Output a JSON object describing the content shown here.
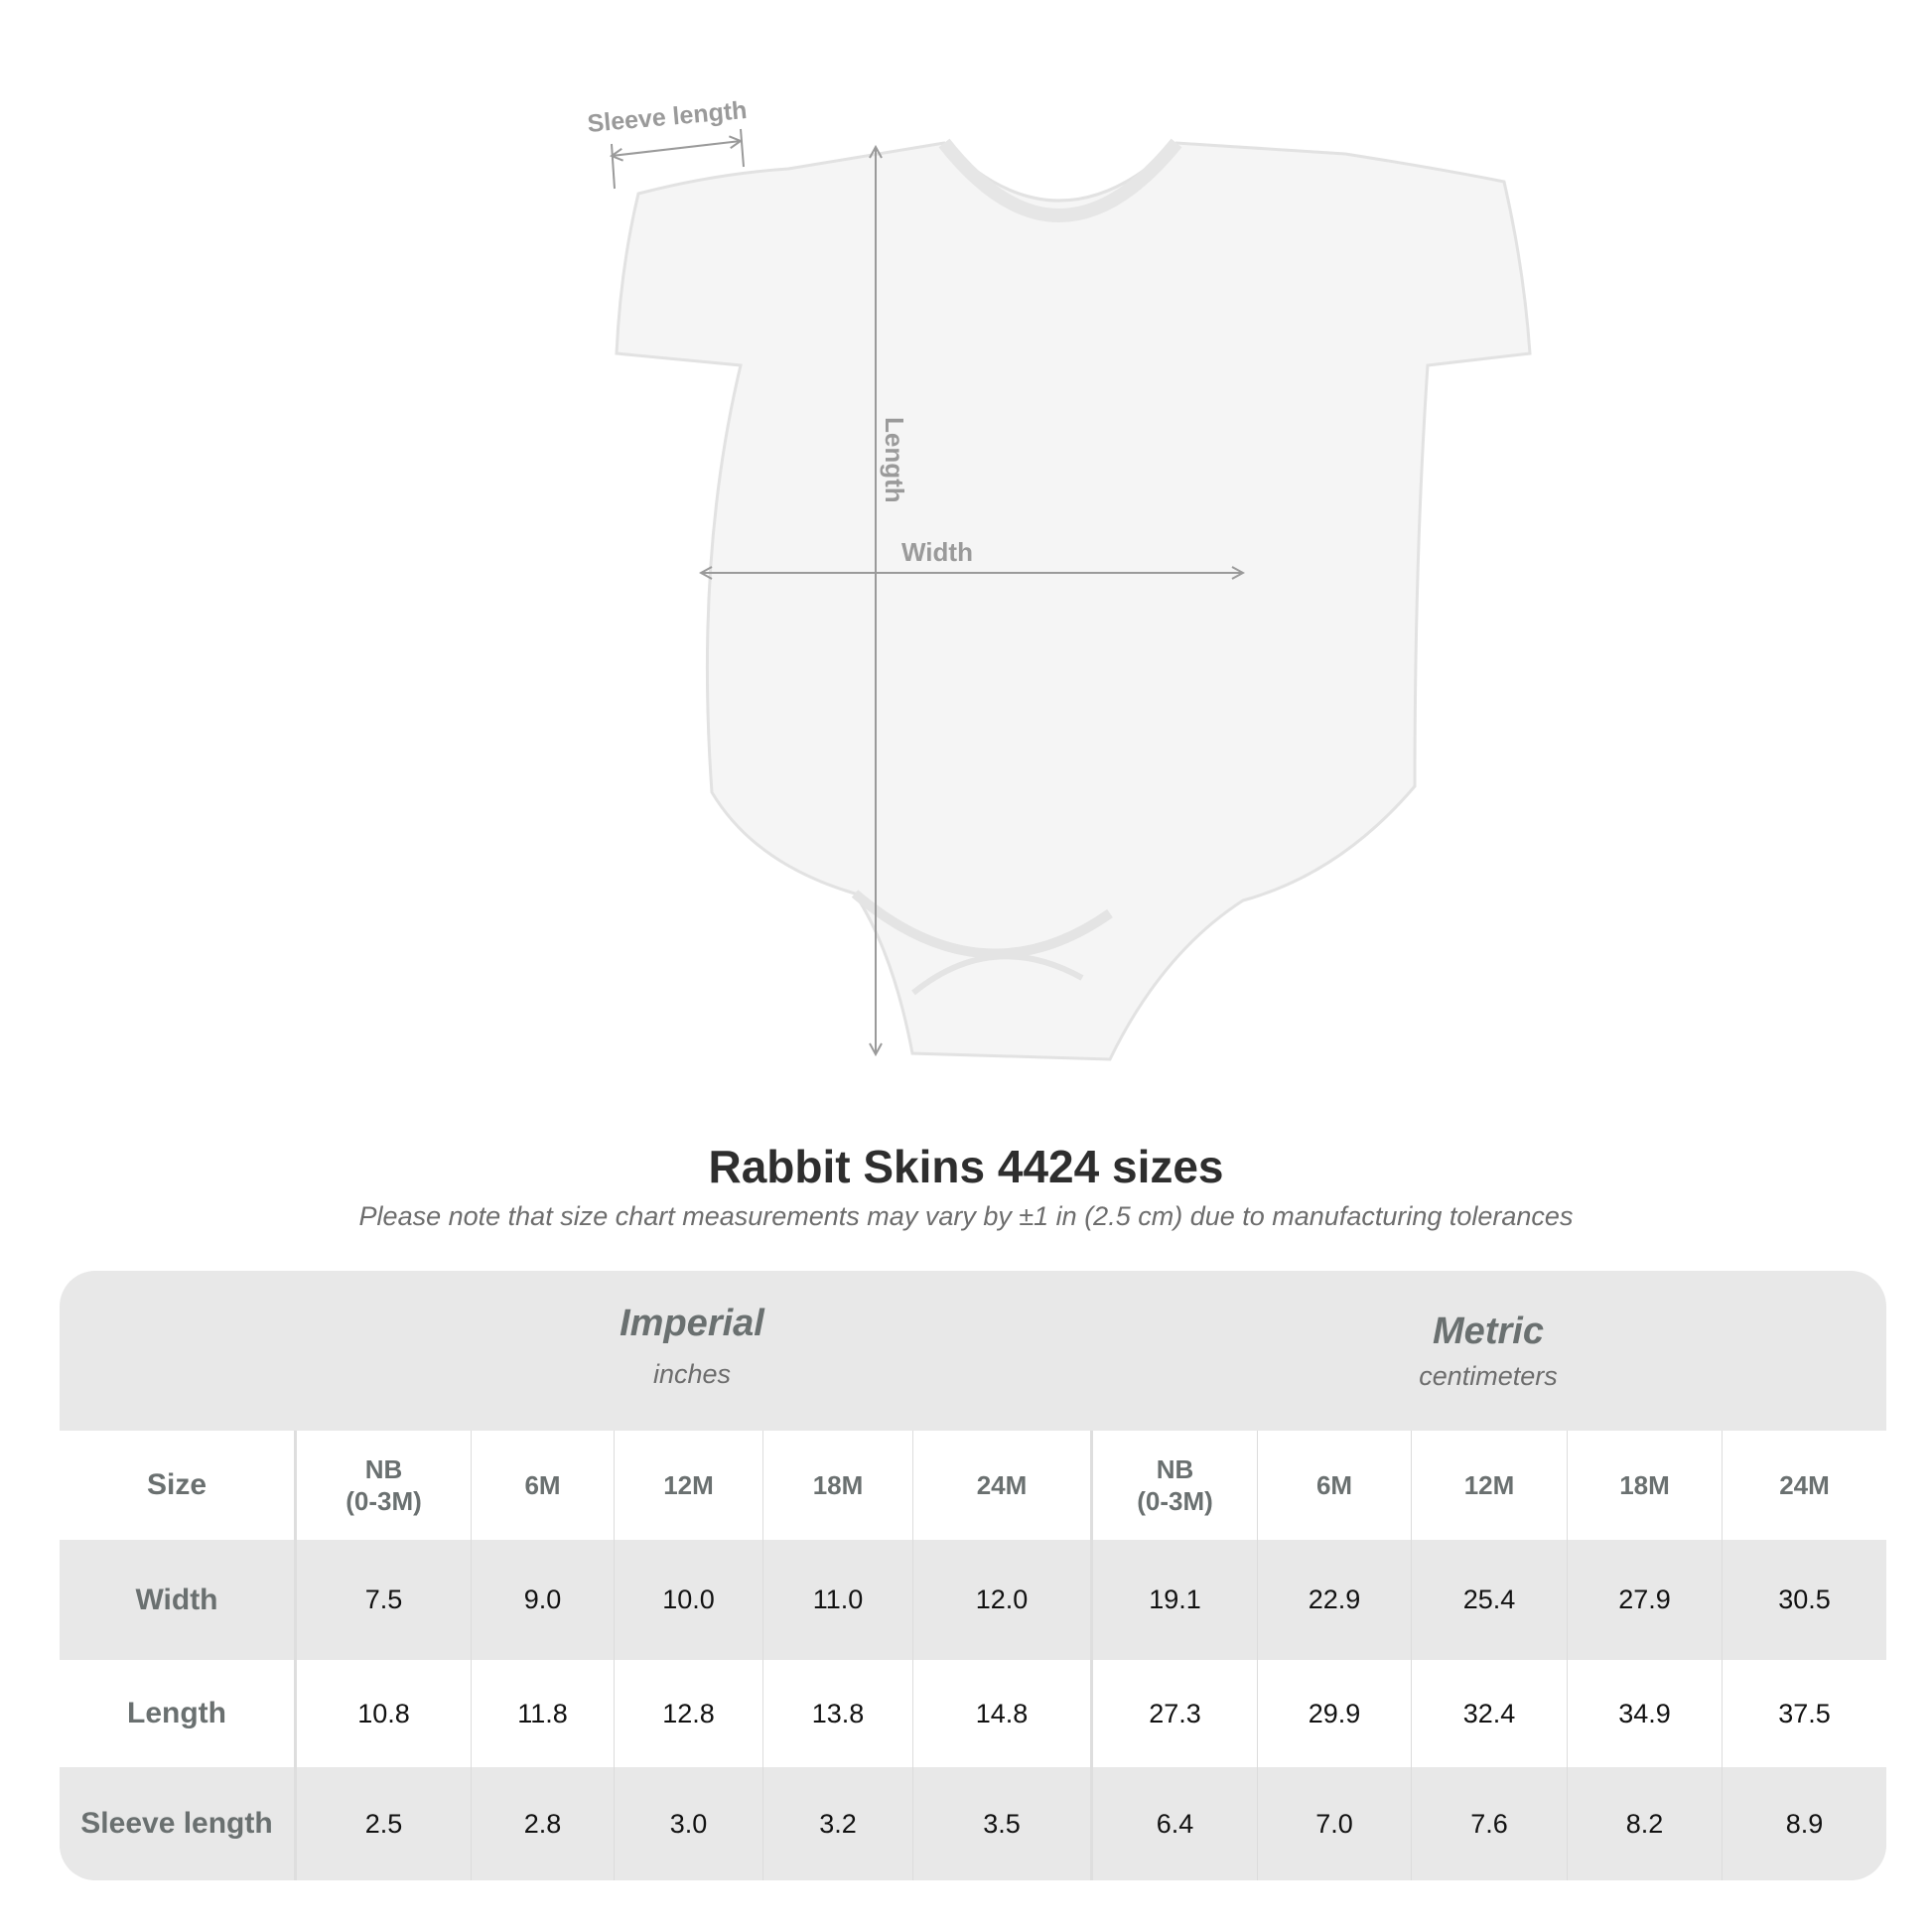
{
  "diagram": {
    "labels": {
      "sleeve": "Sleeve length",
      "length": "Length",
      "width": "Width"
    },
    "garment_color": "#f7f7f7",
    "line_color": "#9a9a9a"
  },
  "title": "Rabbit Skins 4424 sizes",
  "subtitle": "Please note that size chart measurements may vary by ±1 in (2.5 cm) due to manufacturing tolerances",
  "table": {
    "imperial": {
      "name": "Imperial",
      "unit": "inches"
    },
    "metric": {
      "name": "Metric",
      "unit": "centimeters"
    },
    "size_label": "Size",
    "sizes": [
      "NB\n(0-3M)",
      "6M",
      "12M",
      "18M",
      "24M"
    ],
    "rows": [
      {
        "label": "Width",
        "imperial": [
          "7.5",
          "9.0",
          "10.0",
          "11.0",
          "12.0"
        ],
        "metric": [
          "19.1",
          "22.9",
          "25.4",
          "27.9",
          "30.5"
        ]
      },
      {
        "label": "Length",
        "imperial": [
          "10.8",
          "11.8",
          "12.8",
          "13.8",
          "14.8"
        ],
        "metric": [
          "27.3",
          "29.9",
          "32.4",
          "34.9",
          "37.5"
        ]
      },
      {
        "label": "Sleeve length",
        "imperial": [
          "2.5",
          "2.8",
          "3.0",
          "3.2",
          "3.5"
        ],
        "metric": [
          "6.4",
          "7.0",
          "7.6",
          "8.2",
          "8.9"
        ]
      }
    ]
  }
}
